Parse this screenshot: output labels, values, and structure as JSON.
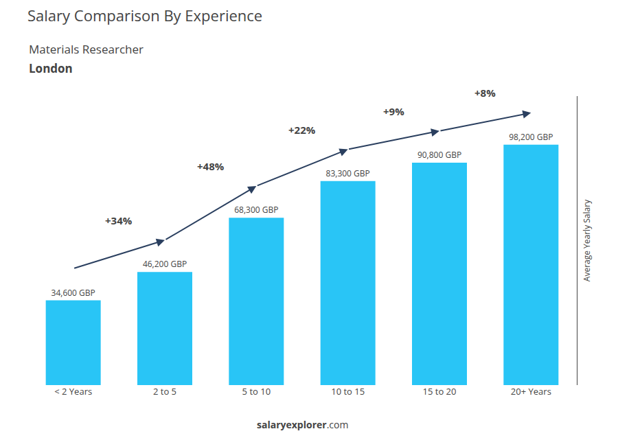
{
  "chart_data": {
    "type": "bar",
    "title": "Salary Comparison By Experience",
    "subtitle": "Materials Researcher",
    "city": "London",
    "ylabel": "Average Yearly Salary",
    "categories": [
      "< 2 Years",
      "2 to 5",
      "5 to 10",
      "10 to 15",
      "15 to 20",
      "20+ Years"
    ],
    "values": [
      34600,
      46200,
      68300,
      83300,
      90800,
      98200
    ],
    "value_labels": [
      "34,600 GBP",
      "46,200 GBP",
      "68,300 GBP",
      "83,300 GBP",
      "90,800 GBP",
      "98,200 GBP"
    ],
    "data_labels": true,
    "annotations": [
      "+34%",
      "+48%",
      "+22%",
      "+9%",
      "+8%"
    ],
    "source": [
      "salary",
      "explorer",
      ".com"
    ],
    "color": "#29c5f6",
    "ylim": [
      0,
      118000
    ],
    "grid": false,
    "tick_labels": "x"
  }
}
